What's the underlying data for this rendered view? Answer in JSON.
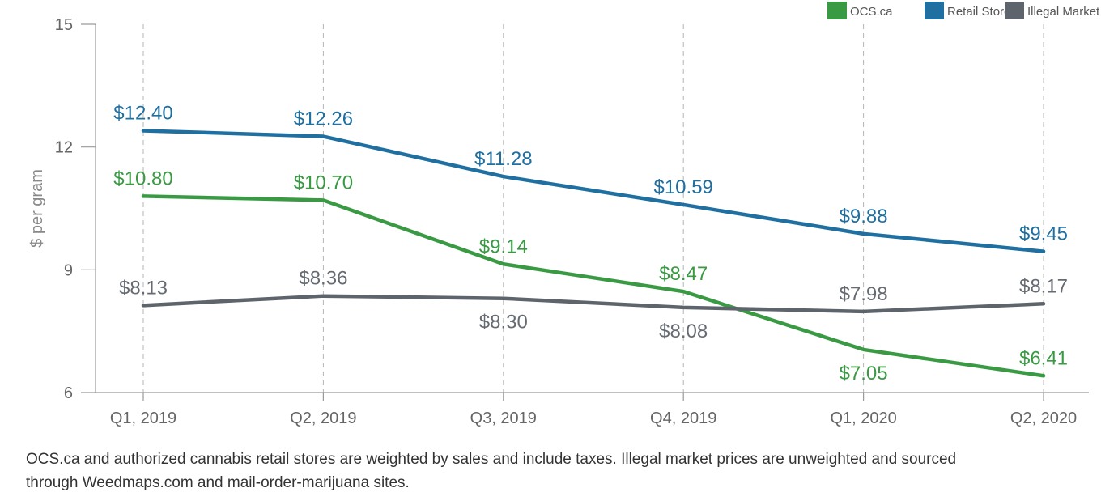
{
  "chart_data": {
    "type": "line",
    "title": "",
    "xlabel": "",
    "ylabel": "$ per gram",
    "categories": [
      "Q1, 2019",
      "Q2, 2019",
      "Q3, 2019",
      "Q4, 2019",
      "Q1, 2020",
      "Q2, 2020"
    ],
    "ylim": [
      6,
      15
    ],
    "yticks": [
      "6",
      "9",
      "12",
      "15"
    ],
    "grid": "vertical dashed lines at each category",
    "legend_position": "top-right",
    "series": [
      {
        "name": "OCS.ca",
        "color": "#3a9a44",
        "values": [
          10.8,
          10.7,
          9.14,
          8.47,
          7.05,
          6.41
        ],
        "labels": [
          "$10.80",
          "$10.70",
          "$9.14",
          "$8.47",
          "$7.05",
          "$6.41"
        ],
        "label_positions": [
          "above",
          "above",
          "above",
          "above",
          "below",
          "above"
        ]
      },
      {
        "name": "Retail Stores",
        "color": "#1f6fa0",
        "values": [
          12.4,
          12.26,
          11.28,
          10.59,
          9.88,
          9.45
        ],
        "labels": [
          "$12.40",
          "$12.26",
          "$11.28",
          "$10.59",
          "$9.88",
          "$9.45"
        ],
        "label_positions": [
          "above",
          "above",
          "above",
          "above",
          "above",
          "above"
        ]
      },
      {
        "name": "Illegal Market",
        "color": "#5e646c",
        "values": [
          8.13,
          8.36,
          8.3,
          8.08,
          7.98,
          8.17
        ],
        "labels": [
          "$8.13",
          "$8.36",
          "$8.30",
          "$8.08",
          "$7.98",
          "$8.17"
        ],
        "label_positions": [
          "above",
          "above",
          "below",
          "below",
          "above",
          "above"
        ]
      }
    ],
    "label_color_illegal": "#666b72"
  },
  "footnote": {
    "line1": "OCS.ca and authorized cannabis retail stores are weighted by sales and include taxes. Illegal market prices are unweighted and sourced",
    "line2": "through Weedmaps.com and mail-order-marijuana sites."
  }
}
